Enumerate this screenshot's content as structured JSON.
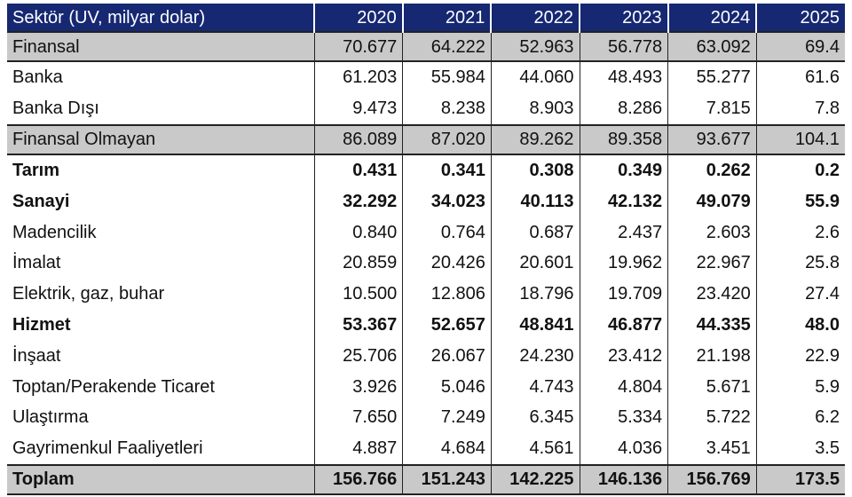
{
  "table": {
    "header": [
      "Sektör (UV, milyar dolar)",
      "2020",
      "2021",
      "2022",
      "2023",
      "2024",
      "2025"
    ],
    "rows": [
      {
        "label": "Finansal",
        "values": [
          "70.677",
          "64.222",
          "52.963",
          "56.778",
          "63.092",
          "69.4"
        ],
        "style": "shade"
      },
      {
        "label": "Banka",
        "values": [
          "61.203",
          "55.984",
          "44.060",
          "48.493",
          "55.277",
          "61.6"
        ],
        "style": "normal"
      },
      {
        "label": "Banka Dışı",
        "values": [
          "9.473",
          "8.238",
          "8.903",
          "8.286",
          "7.815",
          "7.8"
        ],
        "style": "normal"
      },
      {
        "label": "Finansal Olmayan",
        "values": [
          "86.089",
          "87.020",
          "89.262",
          "89.358",
          "93.677",
          "104.1"
        ],
        "style": "shade"
      },
      {
        "label": "Tarım",
        "values": [
          "0.431",
          "0.341",
          "0.308",
          "0.349",
          "0.262",
          "0.2"
        ],
        "style": "bold"
      },
      {
        "label": "Sanayi",
        "values": [
          "32.292",
          "34.023",
          "40.113",
          "42.132",
          "49.079",
          "55.9"
        ],
        "style": "bold"
      },
      {
        "label": "Madencilik",
        "values": [
          "0.840",
          "0.764",
          "0.687",
          "2.437",
          "2.603",
          "2.6"
        ],
        "style": "normal"
      },
      {
        "label": "İmalat",
        "values": [
          "20.859",
          "20.426",
          "20.601",
          "19.962",
          "22.967",
          "25.8"
        ],
        "style": "normal"
      },
      {
        "label": "Elektrik, gaz, buhar",
        "values": [
          "10.500",
          "12.806",
          "18.796",
          "19.709",
          "23.420",
          "27.4"
        ],
        "style": "normal"
      },
      {
        "label": "Hizmet",
        "values": [
          "53.367",
          "52.657",
          "48.841",
          "46.877",
          "44.335",
          "48.0"
        ],
        "style": "bold"
      },
      {
        "label": "İnşaat",
        "values": [
          "25.706",
          "26.067",
          "24.230",
          "23.412",
          "21.198",
          "22.9"
        ],
        "style": "normal"
      },
      {
        "label": "Toptan/Perakende Ticaret",
        "values": [
          "3.926",
          "5.046",
          "4.743",
          "4.804",
          "5.671",
          "5.9"
        ],
        "style": "normal"
      },
      {
        "label": "Ulaştırma",
        "values": [
          "7.650",
          "7.249",
          "6.345",
          "5.334",
          "5.722",
          "6.2"
        ],
        "style": "normal"
      },
      {
        "label": "Gayrimenkul Faaliyetleri",
        "values": [
          "4.887",
          "4.684",
          "4.561",
          "4.036",
          "3.451",
          "3.5"
        ],
        "style": "normal"
      },
      {
        "label": "Toplam",
        "values": [
          "156.766",
          "151.243",
          "142.225",
          "146.136",
          "156.769",
          "173.5"
        ],
        "style": "shade total"
      }
    ]
  },
  "colors": {
    "header_bg": "#162872",
    "header_text": "#ffffff",
    "shade_bg": "#c9c9c9"
  }
}
